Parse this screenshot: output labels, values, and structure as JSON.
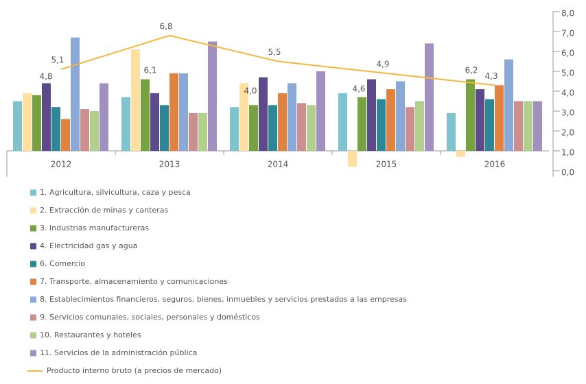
{
  "chart_data": {
    "type": "bar",
    "categories": [
      "2012",
      "2013",
      "2014",
      "2015",
      "2016"
    ],
    "ylim": [
      0,
      8
    ],
    "yticks": [
      {
        "value": 0,
        "label": "0,0"
      },
      {
        "value": 1,
        "label": "1,0"
      },
      {
        "value": 2,
        "label": "2,0"
      },
      {
        "value": 3,
        "label": "3,0"
      },
      {
        "value": 4,
        "label": "4,0"
      },
      {
        "value": 5,
        "label": "5,0"
      },
      {
        "value": 6,
        "label": "6,0"
      },
      {
        "value": 7,
        "label": "7,0"
      },
      {
        "value": 8,
        "label": "8,0"
      }
    ],
    "y2lim": [
      -1,
      7
    ],
    "series": [
      {
        "name": "1. Agricultura, silvicultura, caza y pesca",
        "color": "#7fc3cf",
        "axis": "y2",
        "values": [
          2.5,
          2.7,
          2.2,
          2.9,
          1.9
        ]
      },
      {
        "name": "2. Extracción de minas y canteras",
        "color": "#ffe0a0",
        "axis": "y2",
        "values": [
          2.9,
          5.1,
          3.4,
          -0.8,
          -0.3
        ]
      },
      {
        "name": "3. Industrias manufactureras",
        "color": "#76a33f",
        "axis": "y2",
        "values": [
          2.8,
          3.6,
          2.3,
          2.7,
          3.6
        ]
      },
      {
        "name": "4. Electricidad gas y agua",
        "color": "#5c4a8a",
        "axis": "y2",
        "values": [
          3.4,
          2.9,
          3.7,
          3.6,
          3.1
        ]
      },
      {
        "name": "6. Comercio",
        "color": "#2e8797",
        "axis": "y2",
        "values": [
          2.2,
          2.3,
          2.3,
          2.6,
          2.6
        ]
      },
      {
        "name": "7. Transporte, almacenamiento y comunicaciones",
        "color": "#e08340",
        "axis": "y2",
        "values": [
          1.6,
          3.9,
          2.9,
          3.1,
          3.3
        ]
      },
      {
        "name": "8. Establecimientos financieros, seguros, bienes, inmuebles y servicios prestados a las empresas",
        "color": "#8aa9d6",
        "axis": "y2",
        "values": [
          5.7,
          3.9,
          3.4,
          3.5,
          4.6
        ]
      },
      {
        "name": "9. Servicios comunales, sociales, personales y domésticos",
        "color": "#cc8f8f",
        "axis": "y2",
        "values": [
          2.1,
          1.9,
          2.4,
          2.2,
          2.5
        ]
      },
      {
        "name": "10. Restaurantes y hoteles",
        "color": "#b2cf8e",
        "axis": "y2",
        "values": [
          2.0,
          1.9,
          2.3,
          2.5,
          2.5
        ]
      },
      {
        "name": "11. Servicios de la administración pública",
        "color": "#a290c0",
        "axis": "y2",
        "values": [
          3.4,
          5.5,
          4.0,
          5.4,
          2.5
        ]
      },
      {
        "name": "Producto interno bruto (a precios de mercado)",
        "color": "#f3b73b",
        "type": "line",
        "values": [
          5.1,
          6.8,
          5.5,
          4.9,
          4.3
        ],
        "value_labels": [
          "5,1",
          "6,8",
          "5,5",
          "4,9",
          "4,3"
        ]
      }
    ],
    "annotations": [
      {
        "category": "2012",
        "text": "4,8"
      },
      {
        "category": "2013",
        "text": "6,1"
      },
      {
        "category": "2014",
        "text": "4,0"
      },
      {
        "category": "2015",
        "text": "4,6"
      },
      {
        "category": "2016",
        "text": "6,2"
      }
    ]
  }
}
